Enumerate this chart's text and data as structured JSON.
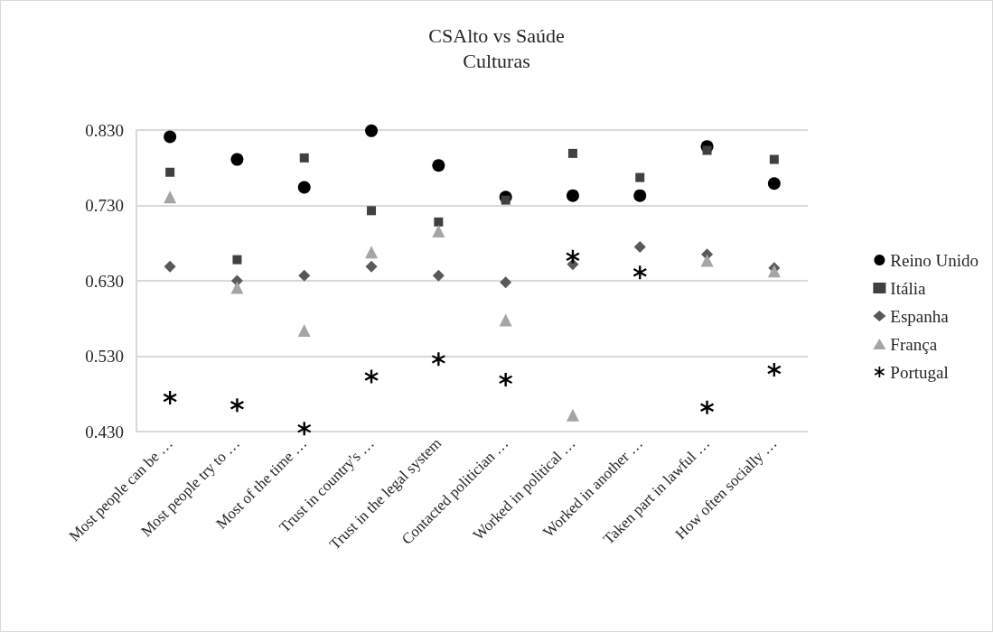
{
  "chart_data": {
    "type": "scatter",
    "title": "CSAlto vs Saúde",
    "subtitle": "Culturas",
    "categories": [
      "Most people can be …",
      "Most people try to …",
      "Most of the time …",
      "Trust in country's …",
      "Trust in the legal system",
      "Contacted politician …",
      "Worked in political …",
      "Worked in another …",
      "Taken part in lawful …",
      "How often socially …"
    ],
    "series": [
      {
        "name": "Reino Unido",
        "color": "#000000",
        "marker": "circle",
        "values": [
          0.821,
          0.791,
          0.754,
          0.829,
          0.783,
          0.741,
          0.743,
          0.743,
          0.808,
          0.759
        ]
      },
      {
        "name": "Itália",
        "color": "#404040",
        "marker": "square",
        "values": [
          0.774,
          0.658,
          0.793,
          0.723,
          0.708,
          0.737,
          0.799,
          0.767,
          0.803,
          0.791
        ]
      },
      {
        "name": "Espanha",
        "color": "#595959",
        "marker": "diamond",
        "values": [
          0.649,
          0.63,
          0.637,
          0.649,
          0.637,
          0.628,
          0.652,
          0.675,
          0.665,
          0.647
        ]
      },
      {
        "name": "França",
        "color": "#a5a5a5",
        "marker": "triangle",
        "values": [
          0.741,
          0.621,
          0.564,
          0.668,
          0.696,
          0.578,
          0.452,
          null,
          0.657,
          0.643
        ]
      },
      {
        "name": "Portugal",
        "color": "#000000",
        "marker": "cross",
        "values": [
          0.475,
          0.465,
          0.434,
          0.503,
          0.526,
          0.499,
          0.662,
          0.641,
          0.462,
          0.512
        ]
      }
    ],
    "ylim": [
      0.43,
      0.83
    ],
    "yticks": [
      {
        "value": 0.43,
        "label": "0.430"
      },
      {
        "value": 0.53,
        "label": "0.530"
      },
      {
        "value": 0.63,
        "label": "0.630"
      },
      {
        "value": 0.73,
        "label": "0.730"
      },
      {
        "value": 0.83,
        "label": "0.830"
      }
    ],
    "grid": "y",
    "legend": "right"
  }
}
